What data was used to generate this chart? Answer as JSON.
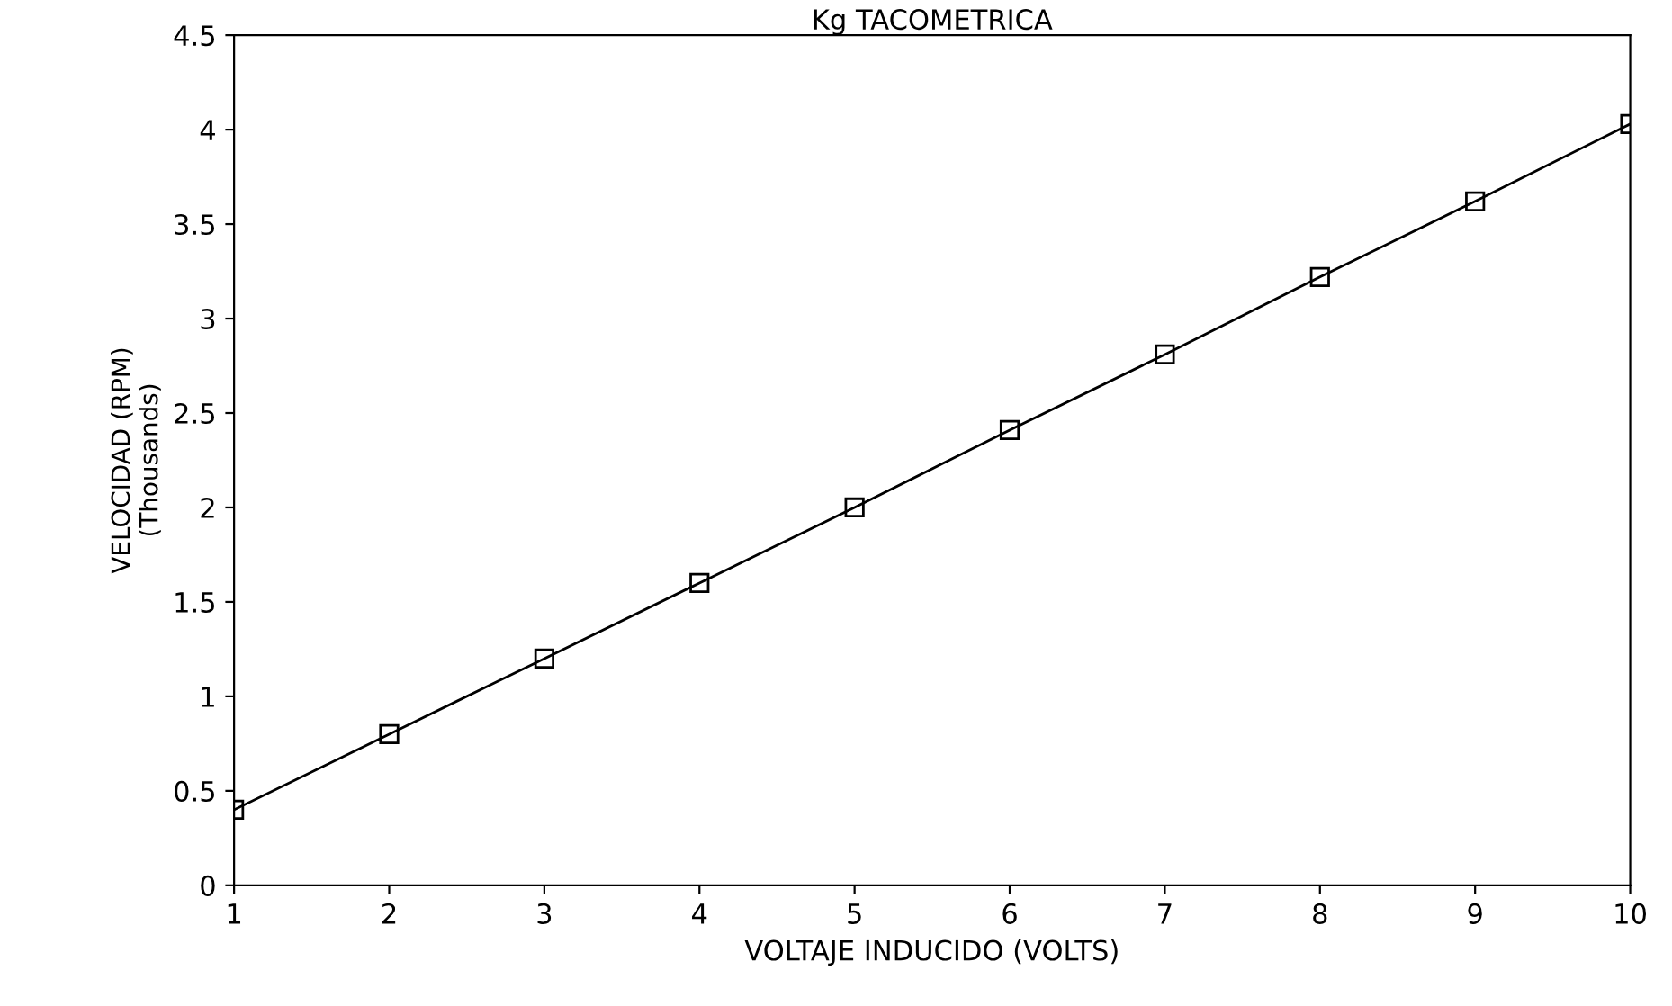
{
  "chart_data": {
    "type": "line",
    "title": "Kg TACOMETRICA",
    "xlabel": "VOLTAJE INDUCIDO (VOLTS)",
    "ylabel": "VELOCIDAD (RPM)\n(Thousands)",
    "x": [
      1,
      2,
      3,
      4,
      5,
      6,
      7,
      8,
      9,
      10
    ],
    "series": [
      {
        "color": "#000000",
        "values": [
          0.4,
          0.8,
          1.2,
          1.6,
          2.0,
          2.41,
          2.81,
          3.22,
          3.62,
          4.03
        ]
      }
    ],
    "xlim": [
      1,
      10
    ],
    "xticks": [
      1,
      2,
      3,
      4,
      5,
      6,
      7,
      8,
      9,
      10
    ],
    "ylim": [
      0,
      4.5
    ],
    "yticks": [
      0,
      0.5,
      1,
      1.5,
      2,
      2.5,
      3,
      3.5,
      4,
      4.5
    ],
    "marker": "square",
    "line_style": "solid",
    "grid": false,
    "legend": false
  }
}
